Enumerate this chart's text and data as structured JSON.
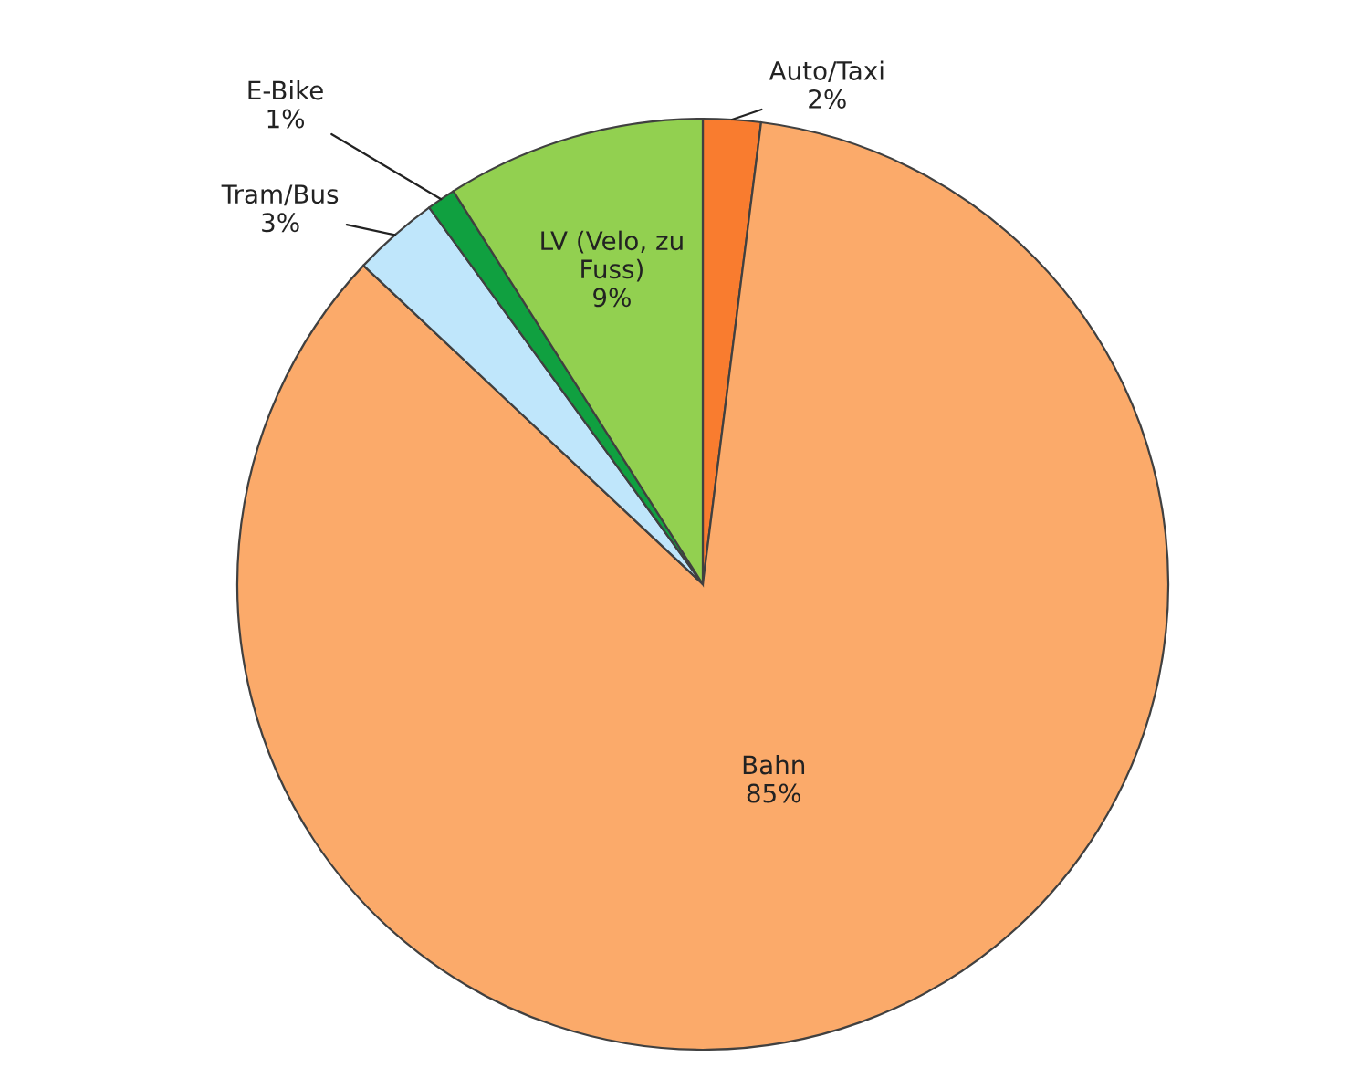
{
  "chart_data": {
    "type": "pie",
    "categories": [
      "Auto/Taxi",
      "Bahn",
      "Tram/Bus",
      "E-Bike",
      "LV (Velo, zu Fuss)"
    ],
    "values": [
      2,
      85,
      3,
      1,
      9
    ],
    "value_labels": [
      "2%",
      "85%",
      "3%",
      "1%",
      "9%"
    ],
    "colors": [
      "#f97c2f",
      "#fbaa6a",
      "#bfe6fb",
      "#10a040",
      "#92d050"
    ],
    "legend": false
  }
}
